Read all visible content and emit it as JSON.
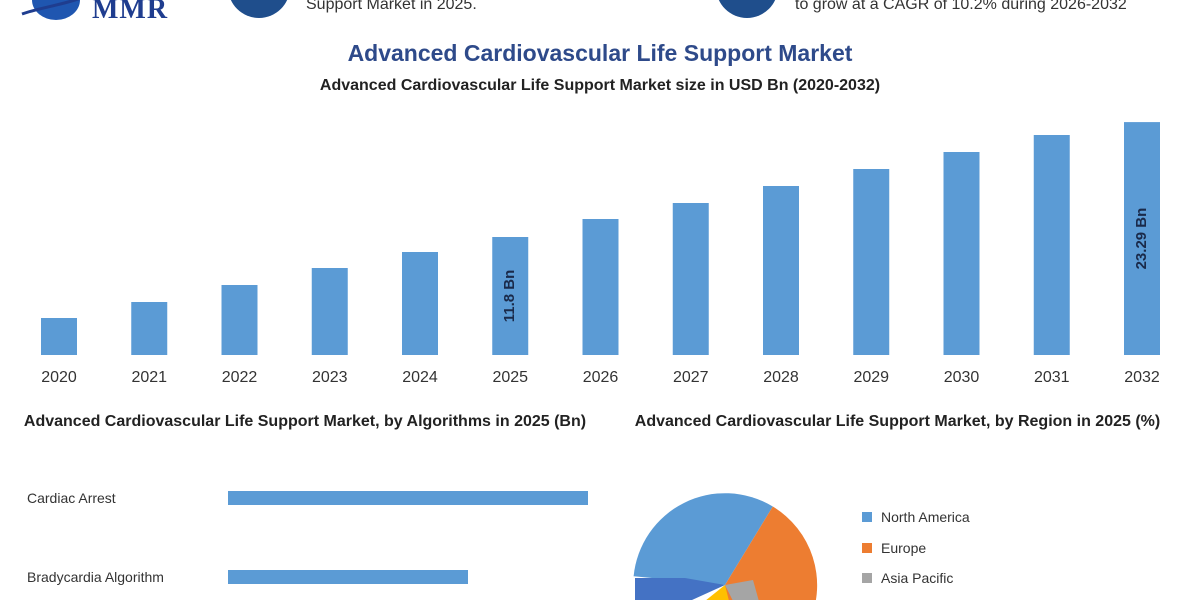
{
  "header": {
    "logo_text": "MMR",
    "left_snippet": "Support Market in 2025.",
    "right_snippet": "to grow at a CAGR of 10.2% during 2026-2032"
  },
  "colors": {
    "bar": "#5b9bd5",
    "title": "#2e4a8a",
    "circle": "#1f4e8c"
  },
  "chart_data": [
    {
      "type": "bar",
      "title": "Advanced Cardiovascular Life Support Market",
      "subtitle": "Advanced Cardiovascular Life Support Market size in USD Bn (2020-2032)",
      "categories": [
        "2020",
        "2021",
        "2022",
        "2023",
        "2024",
        "2025",
        "2026",
        "2027",
        "2028",
        "2029",
        "2030",
        "2031",
        "2032"
      ],
      "values": [
        3.7,
        5.3,
        7.0,
        8.7,
        10.3,
        11.8,
        13.6,
        15.2,
        16.9,
        18.6,
        20.3,
        22.0,
        23.29
      ],
      "data_labels": {
        "2025": "11.8 Bn",
        "2032": "23.29 Bn"
      },
      "ylim": [
        0,
        24
      ],
      "grid": false
    },
    {
      "type": "bar",
      "orientation": "horizontal",
      "title": "Advanced Cardiovascular Life Support Market, by Algorithms in 2025 (Bn)",
      "categories": [
        "Cardiac Arrest",
        "Bradycardia Algorithm"
      ],
      "values": [
        4.5,
        3.0
      ],
      "grid": false
    },
    {
      "type": "pie",
      "title": "Advanced Cardiovascular Life Support Market, by Region in 2025 (%)",
      "labels": [
        "North America",
        "Europe",
        "Asia Pacific"
      ],
      "colors": [
        "#5b9bd5",
        "#ed7d31",
        "#a5a5a5"
      ],
      "legend": "right"
    }
  ]
}
